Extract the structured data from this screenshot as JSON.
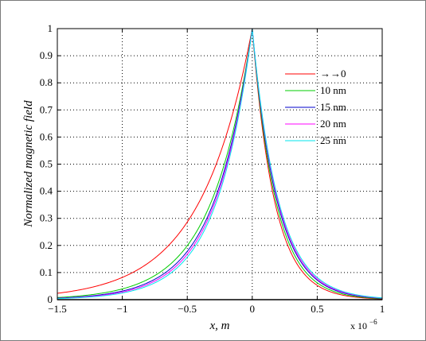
{
  "chart_data": {
    "type": "line",
    "title": "",
    "xlabel": "x, m",
    "ylabel": "Normalized magnetic field",
    "x_multiplier_label": "x 10",
    "x_multiplier_exponent": "−6",
    "xlim": [
      -1.5,
      1.0
    ],
    "ylim": [
      0,
      1
    ],
    "x_ticks": [
      "-1.5",
      "-1",
      "-0.5",
      "0",
      "0.5",
      "1"
    ],
    "y_ticks": [
      "0",
      "0.1",
      "0.2",
      "0.3",
      "0.4",
      "0.5",
      "0.6",
      "0.7",
      "0.8",
      "0.9",
      "1"
    ],
    "grid": true,
    "legend_position": "top-right",
    "series": [
      {
        "name": "→→0",
        "color": "#ff0000",
        "decay_left": 0.4,
        "decay_right": 0.17
      },
      {
        "name": "10 nm",
        "color": "#00cc00",
        "decay_left": 0.31,
        "decay_right": 0.18
      },
      {
        "name": "15 nm",
        "color": "#0000cc",
        "decay_left": 0.29,
        "decay_right": 0.19
      },
      {
        "name": "20 nm",
        "color": "#ff00ff",
        "decay_left": 0.28,
        "decay_right": 0.195
      },
      {
        "name": "25 nm",
        "color": "#00e5ee",
        "decay_left": 0.27,
        "decay_right": 0.2
      }
    ],
    "sample_points": {
      "x": [
        -1.5,
        -1.0,
        -0.5,
        -0.25,
        0,
        0.25,
        0.5,
        1.0
      ],
      "y_first_series": [
        0.02,
        0.08,
        0.29,
        0.52,
        1.0,
        0.23,
        0.05,
        0.0
      ]
    }
  }
}
